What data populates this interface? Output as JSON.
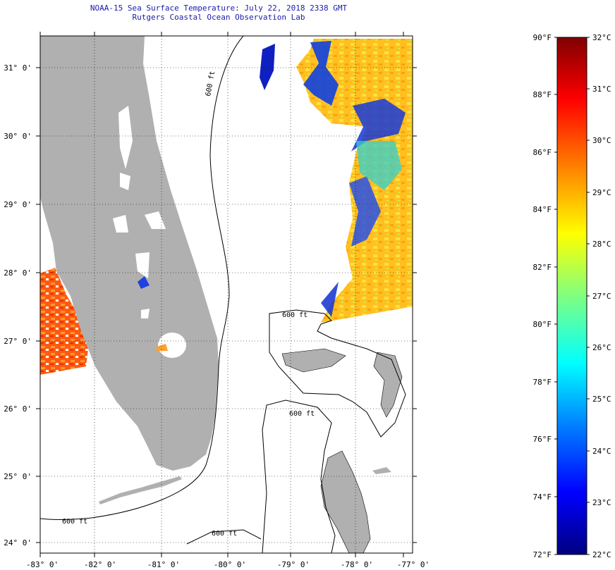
{
  "header": {
    "title": "NOAA-15 Sea Surface Temperature:  July 22, 2018 2338 GMT",
    "subtitle": "Rutgers Coastal Ocean Observation Lab"
  },
  "map": {
    "lat_labels": [
      "31° 0'",
      "30° 0'",
      "29° 0'",
      "28° 0'",
      "27° 0'",
      "26° 0'",
      "25° 0'",
      "24° 0'"
    ],
    "lon_labels": [
      "-83° 0'",
      "-82° 0'",
      "-81° 0'",
      "-80° 0'",
      "-79° 0'",
      "-78° 0'",
      "-77° 0'"
    ],
    "contour_labels": [
      "600 ft",
      "600 ft",
      "600 ft",
      "600 ft",
      "600 ft"
    ],
    "land_color": "#b0b0b0",
    "ocean_color": "#ffffff"
  },
  "colorbar": {
    "f_labels": [
      "90°F",
      "88°F",
      "86°F",
      "84°F",
      "82°F",
      "80°F",
      "78°F",
      "76°F",
      "74°F",
      "72°F"
    ],
    "c_labels": [
      "32°C",
      "31°C",
      "30°C",
      "29°C",
      "28°C",
      "27°C",
      "26°C",
      "25°C",
      "24°C",
      "23°C",
      "22°C"
    ],
    "stops": [
      "#000080",
      "#0000ff",
      "#0080ff",
      "#00ffff",
      "#80ff80",
      "#ffff00",
      "#ff8000",
      "#ff0000",
      "#800000"
    ]
  }
}
